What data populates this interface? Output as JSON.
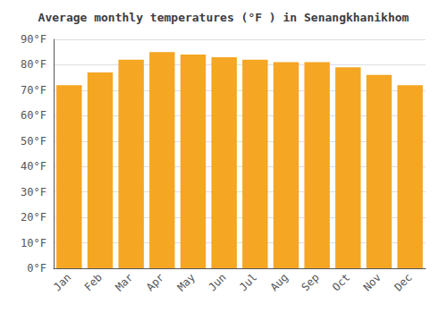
{
  "chart_data": {
    "type": "bar",
    "title": "Average monthly temperatures (°F ) in Senangkhanikhom",
    "categories": [
      "Jan",
      "Feb",
      "Mar",
      "Apr",
      "May",
      "Jun",
      "Jul",
      "Aug",
      "Sep",
      "Oct",
      "Nov",
      "Dec"
    ],
    "values": [
      72,
      77,
      82,
      85,
      84,
      83,
      82,
      81,
      81,
      79,
      76,
      72
    ],
    "color": "#F5A623",
    "ylim": [
      0,
      90
    ],
    "yticks": [
      {
        "value": 0,
        "label": "0°F"
      },
      {
        "value": 10,
        "label": "10°F"
      },
      {
        "value": 20,
        "label": "20°F"
      },
      {
        "value": 30,
        "label": "30°F"
      },
      {
        "value": 40,
        "label": "40°F"
      },
      {
        "value": 50,
        "label": "50°F"
      },
      {
        "value": 60,
        "label": "60°F"
      },
      {
        "value": 70,
        "label": "70°F"
      },
      {
        "value": 80,
        "label": "80°F"
      },
      {
        "value": 90,
        "label": "90°F"
      }
    ],
    "grid": true
  }
}
